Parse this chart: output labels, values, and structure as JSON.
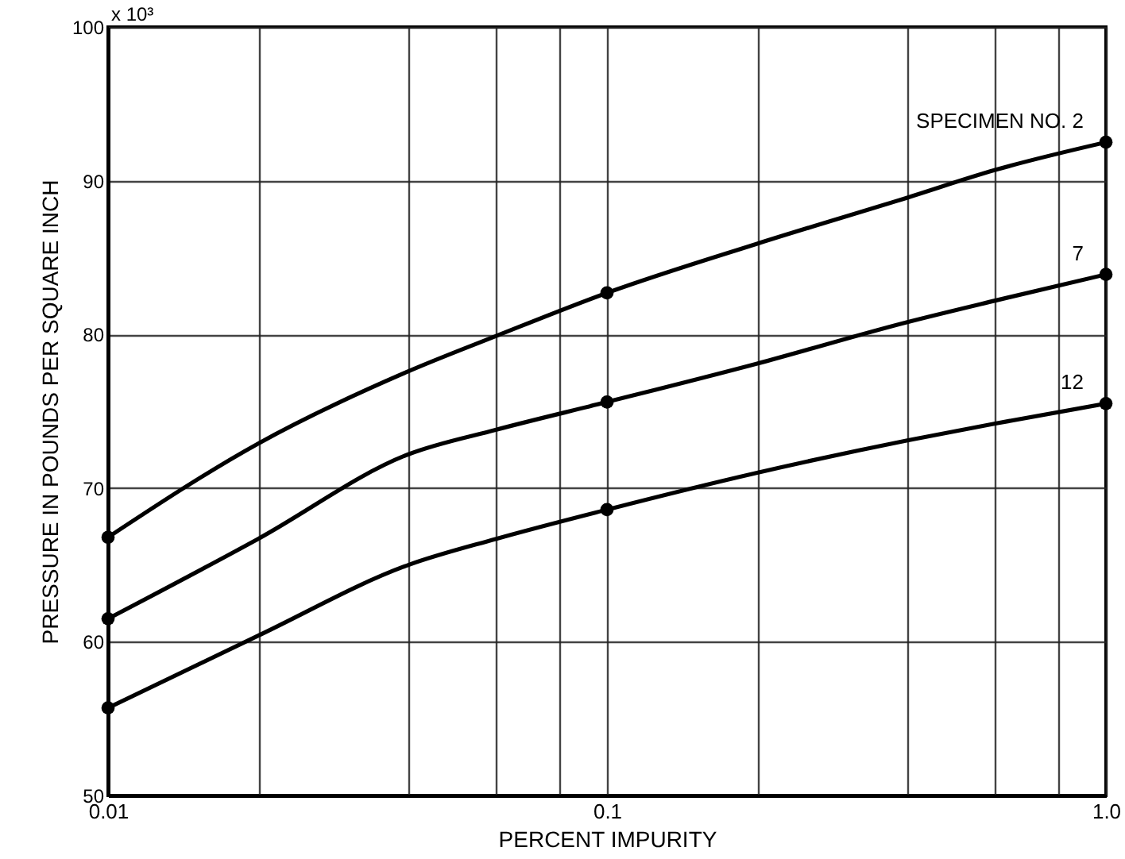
{
  "chart_data": {
    "type": "line",
    "xlabel": "PERCENT IMPURITY",
    "ylabel": "PRESSURE IN POUNDS PER SQUARE INCH",
    "log": "x",
    "grid": true,
    "xlim": [
      0.01,
      1
    ],
    "xticks": [
      0.01,
      {
        "value": 0.02,
        "label": null
      },
      {
        "value": 0.04,
        "label": null
      },
      {
        "value": 0.06,
        "label": null
      },
      {
        "value": 0.08,
        "label": null
      },
      0.1,
      {
        "value": 0.2,
        "label": null
      },
      {
        "value": 0.4,
        "label": null
      },
      {
        "value": 0.6,
        "label": null
      },
      {
        "value": 0.8,
        "label": null
      },
      {
        "value": 1,
        "label": "1.0"
      }
    ],
    "ylim": [
      50,
      100
    ],
    "yticks": [
      50,
      60,
      70,
      80,
      90,
      100
    ],
    "annotations": [
      "x 10³"
    ],
    "x": [
      0.01,
      0.02,
      0.04,
      0.06,
      0.1,
      0.2,
      0.4,
      0.6,
      1
    ],
    "series": [
      {
        "name": "SPECIMEN NO. 2",
        "type": "line",
        "color": "#000000",
        "values": [
          66.8,
          72.9,
          77.6,
          79.9,
          82.7,
          85.9,
          88.9,
          90.7,
          92.5
        ]
      },
      {
        "name": "7",
        "type": "line",
        "color": "#000000",
        "values": [
          61.5,
          66.7,
          72.2,
          73.8,
          75.6,
          78.1,
          80.8,
          82.2,
          83.9
        ]
      },
      {
        "name": "12",
        "type": "line",
        "color": "#000000",
        "values": [
          55.7,
          60.4,
          65.0,
          66.7,
          68.6,
          71.0,
          73.1,
          74.2,
          75.5
        ]
      },
      {
        "type": "scatter",
        "color": "#000000",
        "x": [
          0.01,
          0.1,
          1
        ],
        "values": [
          66.8,
          82.7,
          92.5
        ]
      },
      {
        "type": "scatter",
        "color": "#000000",
        "x": [
          0.01,
          0.1,
          1
        ],
        "values": [
          61.5,
          75.6,
          83.9
        ]
      },
      {
        "type": "scatter",
        "color": "#000000",
        "x": [
          0.01,
          0.1,
          1
        ],
        "values": [
          55.7,
          68.6,
          75.5
        ]
      }
    ]
  }
}
